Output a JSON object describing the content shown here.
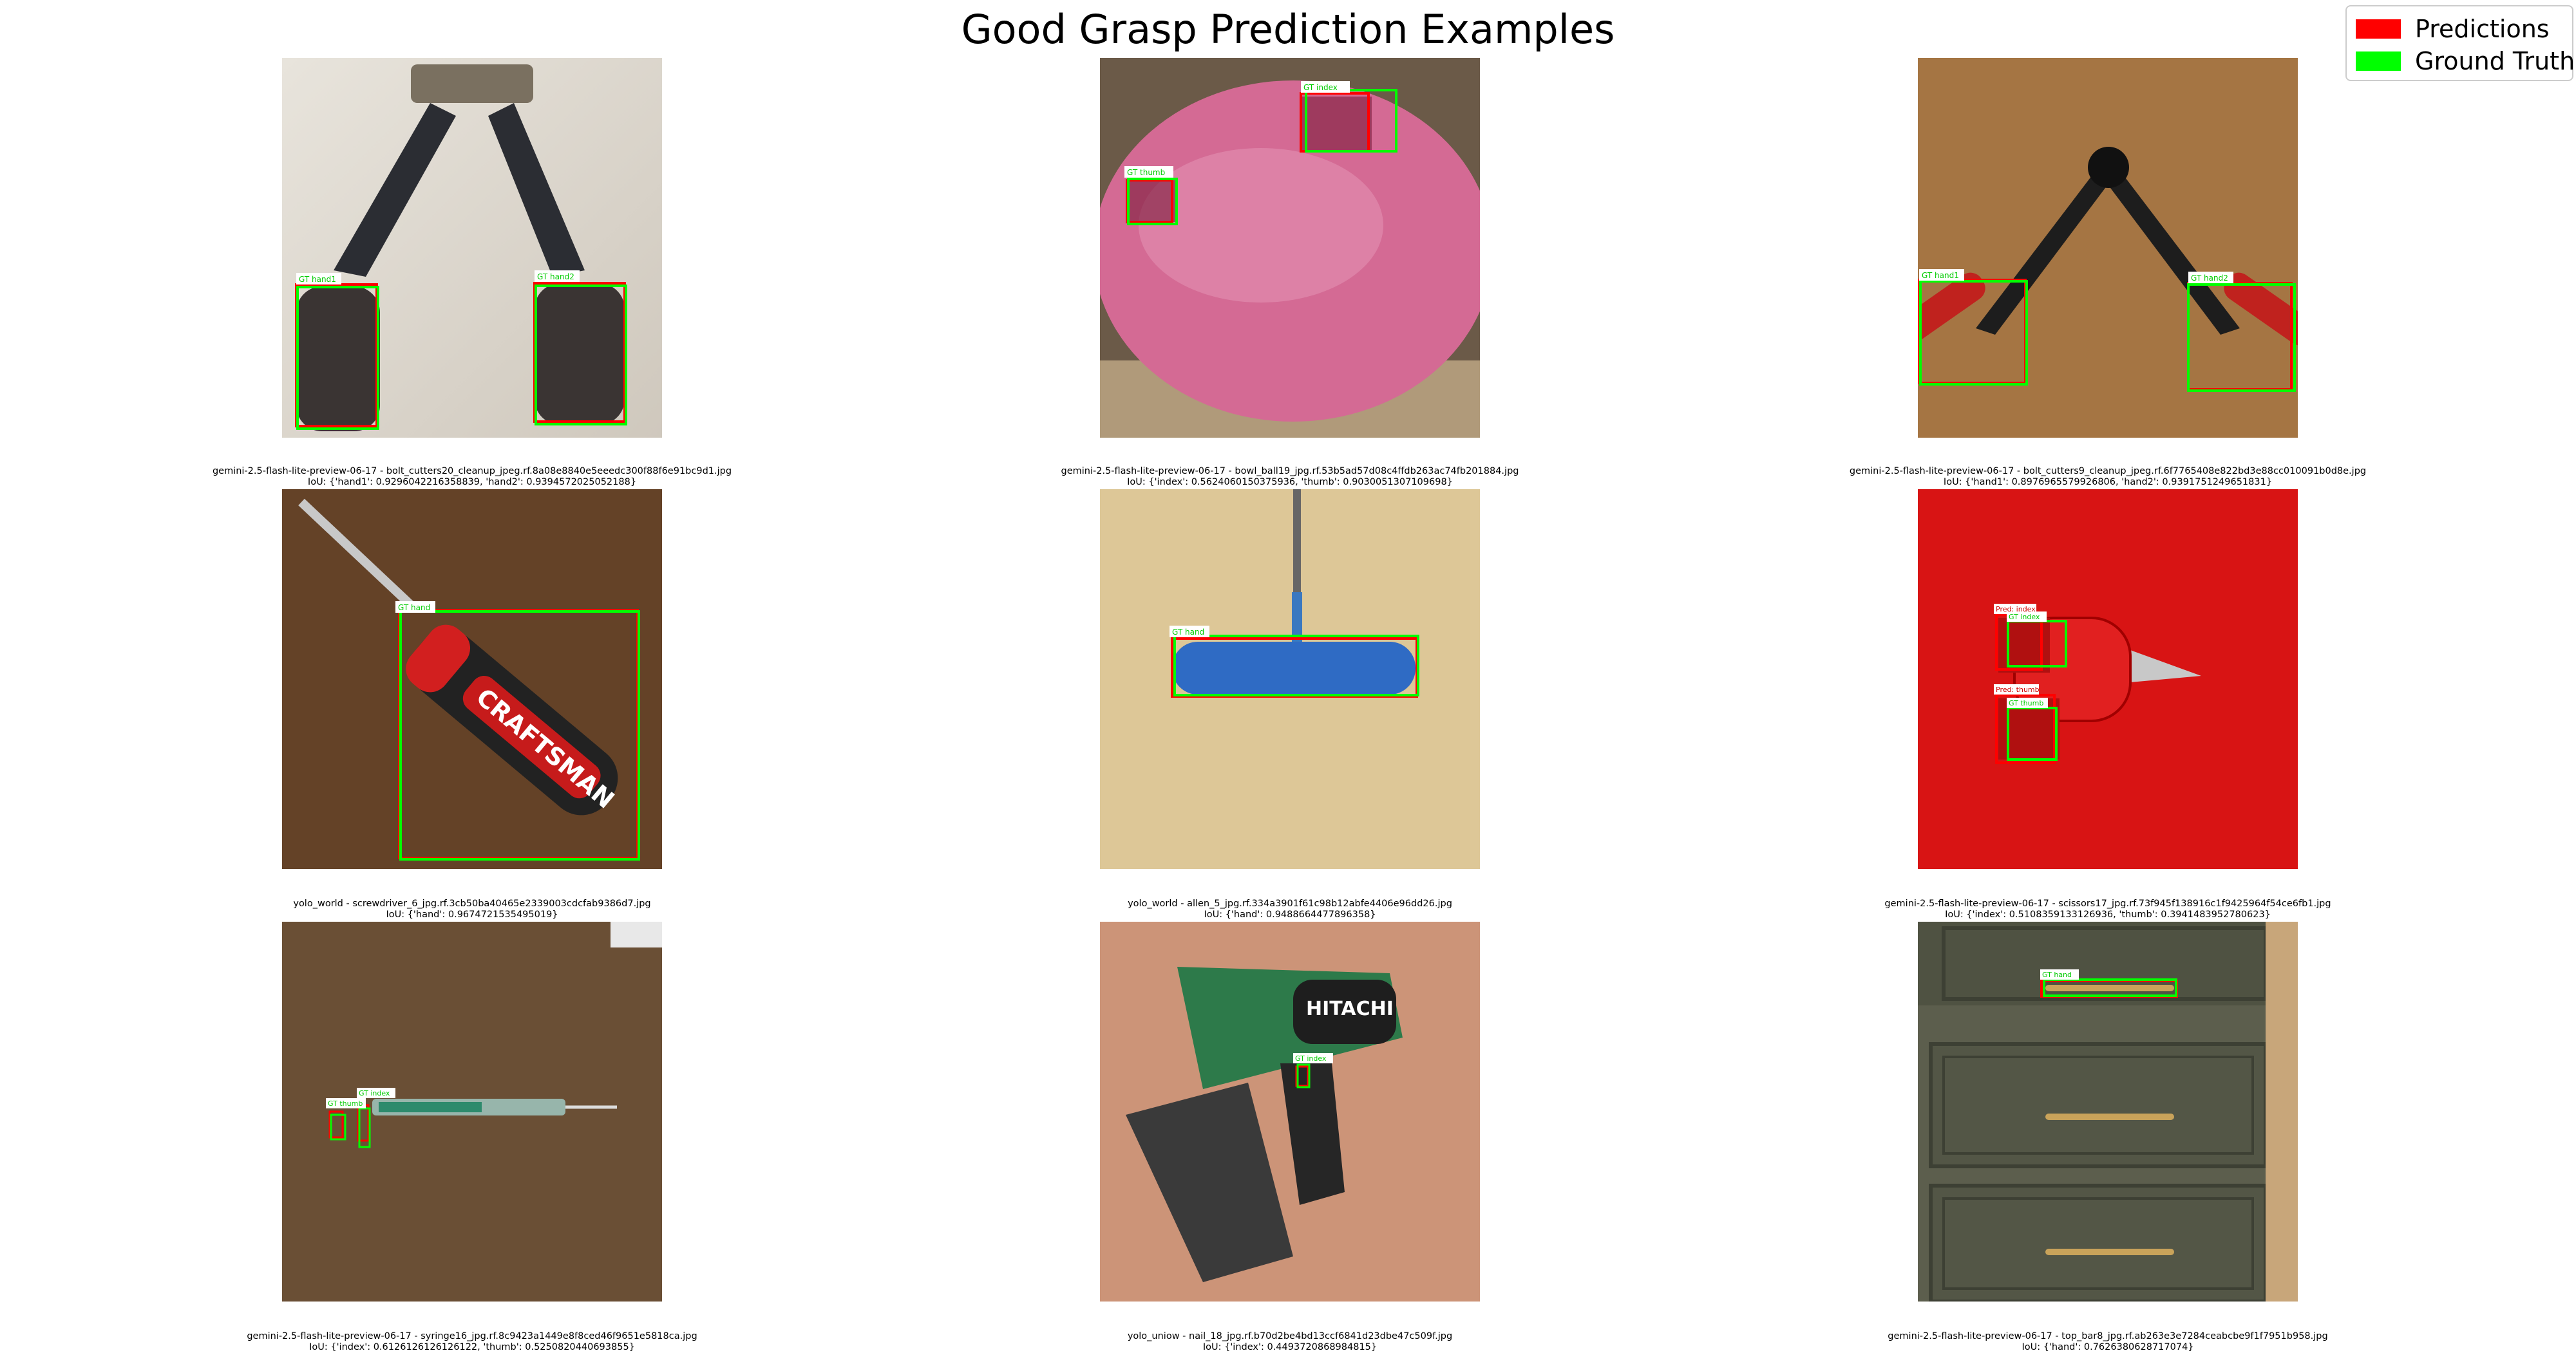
{
  "title": "Good Grasp Prediction Examples",
  "legend": [
    {
      "label": "Predictions",
      "color": "#ff0000"
    },
    {
      "label": "Ground Truth",
      "color": "#00ff00"
    }
  ],
  "panels": [
    {
      "name": "bolt_cutters20",
      "object": "bolt-cutters-tan",
      "filename": "gemini-2.5-flash-lite-preview-06-17 - bolt_cutters20_cleanup_jpeg.rf.8a08e8840e5eeedc300f88f6e91bc9d1.jpg",
      "iou": "IoU: {'hand1': 0.9296042216358839, 'hand2': 0.9394572025052188}",
      "boxes": [
        {
          "label": "GT hand1"
        },
        {
          "label": "GT hand2"
        }
      ]
    },
    {
      "name": "bowl_ball19",
      "object": "bowling-ball",
      "filename": "gemini-2.5-flash-lite-preview-06-17 - bowl_ball19_jpg.rf.53b5ad57d08c4ffdb263ac74fb201884.jpg",
      "iou": "IoU: {'index': 0.5624060150375936, 'thumb': 0.903005130710969​8}",
      "boxes": [
        {
          "label": "GT index"
        },
        {
          "label": "GT thumb"
        }
      ]
    },
    {
      "name": "bolt_cutters9",
      "object": "bolt-cutters-red",
      "filename": "gemini-2.5-flash-lite-preview-06-17 - bolt_cutters9_cleanup_jpeg.rf.6f7765408e822bd3e88cc010091b0d8e.jpg",
      "iou": "IoU: {'hand1': 0.8976965579926806, 'hand2': 0.9391751249651831}",
      "boxes": [
        {
          "label": "GT hand1"
        },
        {
          "label": "GT hand2"
        }
      ]
    },
    {
      "name": "screwdriver_6",
      "object": "screwdriver",
      "filename": "yolo_world - screwdriver_6_jpg.rf.3cb50ba40465e2339003cdcfab9386d7.jpg",
      "iou": "IoU: {'hand': 0.9674721535495019}",
      "boxes": [
        {
          "label": "GT hand"
        }
      ],
      "handle_text": "CRAFTSMAN"
    },
    {
      "name": "allen_5",
      "object": "allen-key",
      "filename": "yolo_world - allen_5_jpg.rf.334a3901f61c98b12abfe4406e96dd26.jpg",
      "iou": "IoU: {'hand': 0.9488664477896358}",
      "boxes": [
        {
          "label": "GT hand"
        }
      ]
    },
    {
      "name": "scissors17",
      "object": "scissors",
      "filename": "gemini-2.5-flash-lite-preview-06-17 - scissors17_jpg.rf.73f945f138916c1f9425964f54ce6fb1.jpg",
      "iou": "IoU: {'index': 0.5108359133126936, 'thumb': 0.3941483952780623}",
      "boxes": [
        {
          "label": "Pred: index",
          "pred": true
        },
        {
          "label": "GT index"
        },
        {
          "label": "Pred: thumb",
          "pred": true
        },
        {
          "label": "GT thumb"
        }
      ]
    },
    {
      "name": "syringe16",
      "object": "syringe",
      "filename": "gemini-2.5-flash-lite-preview-06-17 - syringe16_jpg.rf.8c9423a1449e8f8ced46f9651e5818ca.jpg",
      "iou": "IoU: {'index': 0.6126126126126122, 'thumb': 0.5250820440693855}",
      "boxes": [
        {
          "label": "GT index"
        },
        {
          "label": "GT thumb"
        }
      ]
    },
    {
      "name": "nail_18",
      "object": "nail-gun",
      "filename": "yolo_uniow - nail_18_jpg.rf.b70d2be4bd13ccf6841d23dbe47c509f.jpg",
      "iou": "IoU: {'index': 0.4493720868984815}",
      "boxes": [
        {
          "label": "GT index"
        }
      ],
      "brand_text": "HITACHI"
    },
    {
      "name": "top_bar8",
      "object": "drawer-handle",
      "filename": "gemini-2.5-flash-lite-preview-06-17 - top_bar8_jpg.rf.ab263e3e7284ceabcbe9f1f7951b958.jpg",
      "iou": "IoU: {'hand': 0.7626380628717074}",
      "boxes": [
        {
          "label": "GT hand"
        }
      ]
    }
  ]
}
